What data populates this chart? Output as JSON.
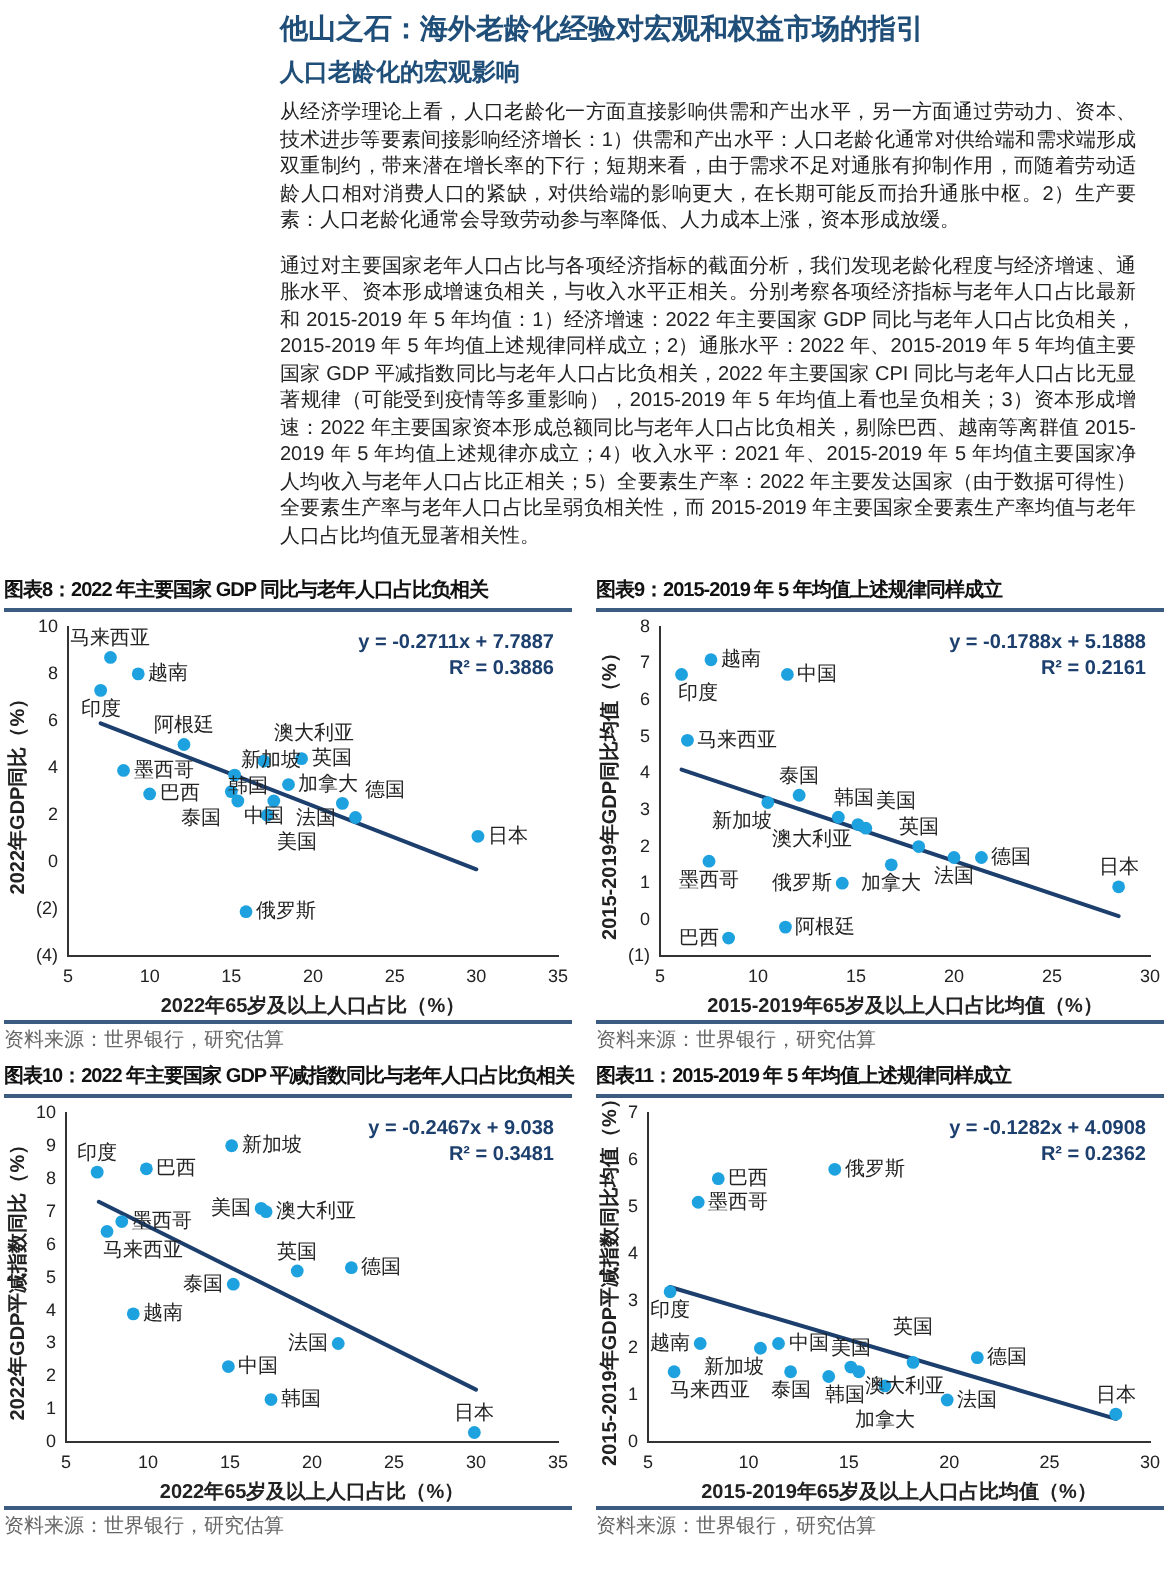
{
  "chart_data": [
    {
      "type": "other",
      "title": "他山之石：海外老龄化经验对宏观和权益市场的指引",
      "subtitle": "人口老龄化的宏观影响",
      "annotations": [
        "从经济学理论上看，人口老龄化一方面直接影响供需和产出水平，另一方面通过劳动力、资本、技术进步等要素间接影响经济增长：1）供需和产出水平：人口老龄化通常对供给端和需求端形成双重制约，带来潜在增长率的下行；短期来看，由于需求不足对通胀有抑制作用，而随着劳动适龄人口相对消费人口的紧缺，对供给端的影响更大，在长期可能反而抬升通胀中枢。2）生产要素：人口老龄化通常会导致劳动参与率降低、人力成本上涨，资本形成放缓。",
        "通过对主要国家老年人口占比与各项经济指标的截面分析，我们发现老龄化程度与经济增速、通胀水平、资本形成增速负相关，与收入水平正相关。分别考察各项经济指标与老年人口占比最新和 2015-2019 年 5 年均值：1）经济增速：2022 年主要国家 GDP 同比与老年人口占比负相关，2015-2019 年 5 年均值上述规律同样成立；2）通胀水平：2022 年、2015-2019 年 5 年均值主要国家 GDP 平减指数同比与老年人口占比负相关，2022 年主要国家 CPI 同比与老年人口占比无显著规律（可能受到疫情等多重影响），2015-2019 年 5 年均值上看也呈负相关；3）资本形成增速：2022 年主要国家资本形成总额同比与老年人口占比负相关，剔除巴西、越南等离群值 2015-2019 年 5 年均值上述规律亦成立；4）收入水平：2021 年、2015-2019 年 5 年均值主要国家净人均收入与老年人口占比正相关；5）全要素生产率：2022 年主要发达国家（由于数据可得性）全要素生产率与老年人口占比呈弱负相关性，而 2015-2019 年主要国家全要素生产率均值与老年人口占比均值无显著相关性。"
      ]
    },
    {
      "type": "scatter",
      "title": "图表8：2022 年主要国家 GDP 同比与老年人口占比负相关",
      "xlabel": "2022年65岁及以上人口占比（%）",
      "ylabel": "2022年GDP同比（%）",
      "xlim": [
        5,
        35
      ],
      "xticks": [
        5,
        10,
        15,
        20,
        25,
        30,
        35
      ],
      "ylim": [
        -4,
        10
      ],
      "yticks": [
        {
          "value": -4,
          "label": "(4)"
        },
        {
          "value": -2,
          "label": "(2)"
        },
        0,
        2,
        4,
        6,
        8,
        10
      ],
      "grid": false,
      "legend": false,
      "marker": "circle",
      "annotations": [
        "y = -0.2711x + 7.7887",
        "R² = 0.3886",
        "资料来源：世界银行，研究估算"
      ],
      "series": [
        {
          "name": "马来西亚",
          "type": "scatter",
          "color": "#1ea2df",
          "x": [
            7.6
          ],
          "values": [
            8.7
          ]
        },
        {
          "name": "越南",
          "type": "scatter",
          "color": "#1ea2df",
          "x": [
            9.3
          ],
          "values": [
            8.0
          ]
        },
        {
          "name": "印度",
          "type": "scatter",
          "color": "#1ea2df",
          "x": [
            7.0
          ],
          "values": [
            7.3
          ]
        },
        {
          "name": "阿根廷",
          "type": "scatter",
          "color": "#1ea2df",
          "x": [
            12.1
          ],
          "values": [
            5.0
          ]
        },
        {
          "name": "墨西哥",
          "type": "scatter",
          "color": "#1ea2df",
          "x": [
            8.4
          ],
          "values": [
            3.9
          ]
        },
        {
          "name": "巴西",
          "type": "scatter",
          "color": "#1ea2df",
          "x": [
            10.0
          ],
          "values": [
            2.9
          ]
        },
        {
          "name": "澳大利亚",
          "type": "scatter",
          "color": "#1ea2df",
          "x": [
            17.0
          ],
          "values": [
            4.3
          ]
        },
        {
          "name": "英国",
          "type": "scatter",
          "color": "#1ea2df",
          "x": [
            19.3
          ],
          "values": [
            4.4
          ]
        },
        {
          "name": "新加坡",
          "type": "scatter",
          "color": "#1ea2df",
          "x": [
            15.2
          ],
          "values": [
            3.7
          ]
        },
        {
          "name": "加拿大",
          "type": "scatter",
          "color": "#1ea2df",
          "x": [
            18.5
          ],
          "values": [
            3.3
          ]
        },
        {
          "name": "泰国",
          "type": "scatter",
          "color": "#1ea2df",
          "x": [
            15.0
          ],
          "values": [
            3.0
          ]
        },
        {
          "name": "中国",
          "type": "scatter",
          "color": "#1ea2df",
          "x": [
            15.4
          ],
          "values": [
            2.6
          ]
        },
        {
          "name": "韩国",
          "type": "scatter",
          "color": "#1ea2df",
          "x": [
            17.6
          ],
          "values": [
            2.6
          ]
        },
        {
          "name": "美国",
          "type": "scatter",
          "color": "#1ea2df",
          "x": [
            17.2
          ],
          "values": [
            2.0
          ]
        },
        {
          "name": "法国",
          "type": "scatter",
          "color": "#1ea2df",
          "x": [
            21.8
          ],
          "values": [
            2.5
          ]
        },
        {
          "name": "德国",
          "type": "scatter",
          "color": "#1ea2df",
          "x": [
            22.6
          ],
          "values": [
            1.9
          ]
        },
        {
          "name": "日本",
          "type": "scatter",
          "color": "#1ea2df",
          "x": [
            30.1
          ],
          "values": [
            1.1
          ]
        },
        {
          "name": "俄罗斯",
          "type": "scatter",
          "color": "#1ea2df",
          "x": [
            15.9
          ],
          "values": [
            -2.1
          ]
        },
        {
          "type": "line",
          "marker": "none",
          "color": "#1c3f6e",
          "x": [
            7.0,
            30.0
          ],
          "values": [
            5.9,
            -0.3
          ]
        }
      ]
    },
    {
      "type": "scatter",
      "title": "图表9：2015-2019 年 5 年均值上述规律同样成立",
      "xlabel": "2015-2019年65岁及以上人口占比均值（%）",
      "ylabel": "2015-2019年GDP同比均值（%）",
      "xlim": [
        5,
        30
      ],
      "xticks": [
        5,
        10,
        15,
        20,
        25,
        30
      ],
      "ylim": [
        -1,
        8
      ],
      "yticks": [
        {
          "value": -1,
          "label": "(1)"
        },
        0,
        1,
        2,
        3,
        4,
        5,
        6,
        7,
        8
      ],
      "grid": false,
      "legend": false,
      "marker": "circle",
      "annotations": [
        "y = -0.1788x + 5.1888",
        "R² = 0.2161",
        "资料来源：世界银行，研究估算"
      ],
      "series": [
        {
          "name": "越南",
          "type": "scatter",
          "color": "#1ea2df",
          "x": [
            7.6
          ],
          "values": [
            7.1
          ]
        },
        {
          "name": "印度",
          "type": "scatter",
          "color": "#1ea2df",
          "x": [
            6.1
          ],
          "values": [
            6.7
          ]
        },
        {
          "name": "中国",
          "type": "scatter",
          "color": "#1ea2df",
          "x": [
            11.5
          ],
          "values": [
            6.7
          ]
        },
        {
          "name": "马来西亚",
          "type": "scatter",
          "color": "#1ea2df",
          "x": [
            6.4
          ],
          "values": [
            4.9
          ]
        },
        {
          "name": "泰国",
          "type": "scatter",
          "color": "#1ea2df",
          "x": [
            12.1
          ],
          "values": [
            3.4
          ]
        },
        {
          "name": "新加坡",
          "type": "scatter",
          "color": "#1ea2df",
          "x": [
            10.5
          ],
          "values": [
            3.2
          ]
        },
        {
          "name": "韩国",
          "type": "scatter",
          "color": "#1ea2df",
          "x": [
            14.1
          ],
          "values": [
            2.8
          ]
        },
        {
          "name": "澳大利亚",
          "type": "scatter",
          "color": "#1ea2df",
          "x": [
            15.1
          ],
          "values": [
            2.6
          ]
        },
        {
          "name": "美国",
          "type": "scatter",
          "color": "#1ea2df",
          "x": [
            15.5
          ],
          "values": [
            2.5
          ]
        },
        {
          "name": "英国",
          "type": "scatter",
          "color": "#1ea2df",
          "x": [
            18.2
          ],
          "values": [
            2.0
          ]
        },
        {
          "name": "加拿大",
          "type": "scatter",
          "color": "#1ea2df",
          "x": [
            16.8
          ],
          "values": [
            1.5
          ]
        },
        {
          "name": "法国",
          "type": "scatter",
          "color": "#1ea2df",
          "x": [
            20.0
          ],
          "values": [
            1.7
          ]
        },
        {
          "name": "德国",
          "type": "scatter",
          "color": "#1ea2df",
          "x": [
            21.4
          ],
          "values": [
            1.7
          ]
        },
        {
          "name": "墨西哥",
          "type": "scatter",
          "color": "#1ea2df",
          "x": [
            7.5
          ],
          "values": [
            1.6
          ]
        },
        {
          "name": "俄罗斯",
          "type": "scatter",
          "color": "#1ea2df",
          "x": [
            14.3
          ],
          "values": [
            1.0
          ]
        },
        {
          "name": "日本",
          "type": "scatter",
          "color": "#1ea2df",
          "x": [
            28.4
          ],
          "values": [
            0.9
          ]
        },
        {
          "name": "阿根廷",
          "type": "scatter",
          "color": "#1ea2df",
          "x": [
            11.4
          ],
          "values": [
            -0.2
          ]
        },
        {
          "name": "巴西",
          "type": "scatter",
          "color": "#1ea2df",
          "x": [
            8.5
          ],
          "values": [
            -0.5
          ]
        },
        {
          "type": "line",
          "marker": "none",
          "color": "#1c3f6e",
          "x": [
            6.1,
            28.4
          ],
          "values": [
            4.1,
            0.1
          ]
        }
      ]
    },
    {
      "type": "scatter",
      "title": "图表10：2022 年主要国家 GDP 平减指数同比与老年人口占比负相关",
      "xlabel": "2022年65岁及以上人口占比（%）",
      "ylabel": "2022年GDP平减指数同比（%）",
      "xlim": [
        5,
        35
      ],
      "xticks": [
        5,
        10,
        15,
        20,
        25,
        30,
        35
      ],
      "ylim": [
        0,
        10
      ],
      "yticks": [
        0,
        1,
        2,
        3,
        4,
        5,
        6,
        7,
        8,
        9,
        10
      ],
      "grid": false,
      "legend": false,
      "marker": "circle",
      "annotations": [
        "y = -0.2467x + 9.038",
        "R² = 0.3481",
        "资料来源：世界银行，研究估算"
      ],
      "series": [
        {
          "name": "印度",
          "type": "scatter",
          "color": "#1ea2df",
          "x": [
            6.9
          ],
          "values": [
            8.2
          ]
        },
        {
          "name": "巴西",
          "type": "scatter",
          "color": "#1ea2df",
          "x": [
            9.9
          ],
          "values": [
            8.3
          ]
        },
        {
          "name": "新加坡",
          "type": "scatter",
          "color": "#1ea2df",
          "x": [
            15.1
          ],
          "values": [
            9.0
          ]
        },
        {
          "name": "墨西哥",
          "type": "scatter",
          "color": "#1ea2df",
          "x": [
            8.4
          ],
          "values": [
            6.7
          ]
        },
        {
          "name": "马来西亚",
          "type": "scatter",
          "color": "#1ea2df",
          "x": [
            7.5
          ],
          "values": [
            6.4
          ]
        },
        {
          "name": "美国",
          "type": "scatter",
          "color": "#1ea2df",
          "x": [
            16.9
          ],
          "values": [
            7.1
          ]
        },
        {
          "name": "澳大利亚",
          "type": "scatter",
          "color": "#1ea2df",
          "x": [
            17.2
          ],
          "values": [
            7.0
          ]
        },
        {
          "name": "英国",
          "type": "scatter",
          "color": "#1ea2df",
          "x": [
            19.1
          ],
          "values": [
            5.2
          ]
        },
        {
          "name": "德国",
          "type": "scatter",
          "color": "#1ea2df",
          "x": [
            22.4
          ],
          "values": [
            5.3
          ]
        },
        {
          "name": "泰国",
          "type": "scatter",
          "color": "#1ea2df",
          "x": [
            15.2
          ],
          "values": [
            4.8
          ]
        },
        {
          "name": "越南",
          "type": "scatter",
          "color": "#1ea2df",
          "x": [
            9.1
          ],
          "values": [
            3.9
          ]
        },
        {
          "name": "法国",
          "type": "scatter",
          "color": "#1ea2df",
          "x": [
            21.6
          ],
          "values": [
            3.0
          ]
        },
        {
          "name": "中国",
          "type": "scatter",
          "color": "#1ea2df",
          "x": [
            14.9
          ],
          "values": [
            2.3
          ]
        },
        {
          "name": "韩国",
          "type": "scatter",
          "color": "#1ea2df",
          "x": [
            17.5
          ],
          "values": [
            1.3
          ]
        },
        {
          "name": "日本",
          "type": "scatter",
          "color": "#1ea2df",
          "x": [
            29.9
          ],
          "values": [
            0.3
          ]
        },
        {
          "type": "line",
          "marker": "none",
          "color": "#1c3f6e",
          "x": [
            7.0,
            30.0
          ],
          "values": [
            7.3,
            1.6
          ]
        }
      ]
    },
    {
      "type": "scatter",
      "title": "图表11：2015-2019 年 5 年均值上述规律同样成立",
      "xlabel": "2015-2019年65岁及以上人口占比均值（%）",
      "ylabel": "2015-2019年GDP平减指数同比均值（%）",
      "xlim": [
        5,
        30
      ],
      "xticks": [
        5,
        10,
        15,
        20,
        25,
        30
      ],
      "ylim": [
        0,
        7
      ],
      "yticks": [
        0,
        1,
        2,
        3,
        4,
        5,
        6,
        7
      ],
      "grid": false,
      "legend": false,
      "marker": "circle",
      "annotations": [
        "y = -0.1282x + 4.0908",
        "R² = 0.2362",
        "资料来源：世界银行，研究估算"
      ],
      "series": [
        {
          "name": "巴西",
          "type": "scatter",
          "color": "#1ea2df",
          "x": [
            8.5
          ],
          "values": [
            5.6
          ]
        },
        {
          "name": "俄罗斯",
          "type": "scatter",
          "color": "#1ea2df",
          "x": [
            14.3
          ],
          "values": [
            5.8
          ]
        },
        {
          "name": "墨西哥",
          "type": "scatter",
          "color": "#1ea2df",
          "x": [
            7.5
          ],
          "values": [
            5.1
          ]
        },
        {
          "name": "印度",
          "type": "scatter",
          "color": "#1ea2df",
          "x": [
            6.1
          ],
          "values": [
            3.2
          ]
        },
        {
          "name": "越南",
          "type": "scatter",
          "color": "#1ea2df",
          "x": [
            7.6
          ],
          "values": [
            2.1
          ]
        },
        {
          "name": "新加坡",
          "type": "scatter",
          "color": "#1ea2df",
          "x": [
            10.6
          ],
          "values": [
            2.0
          ]
        },
        {
          "name": "中国",
          "type": "scatter",
          "color": "#1ea2df",
          "x": [
            11.5
          ],
          "values": [
            2.1
          ]
        },
        {
          "name": "马来西亚",
          "type": "scatter",
          "color": "#1ea2df",
          "x": [
            6.3
          ],
          "values": [
            1.5
          ]
        },
        {
          "name": "泰国",
          "type": "scatter",
          "color": "#1ea2df",
          "x": [
            12.1
          ],
          "values": [
            1.5
          ]
        },
        {
          "name": "韩国",
          "type": "scatter",
          "color": "#1ea2df",
          "x": [
            14.0
          ],
          "values": [
            1.4
          ]
        },
        {
          "name": "美国",
          "type": "scatter",
          "color": "#1ea2df",
          "x": [
            15.1
          ],
          "values": [
            1.6
          ]
        },
        {
          "name": "澳大利亚",
          "type": "scatter",
          "color": "#1ea2df",
          "x": [
            15.5
          ],
          "values": [
            1.5
          ]
        },
        {
          "name": "加拿大",
          "type": "scatter",
          "color": "#1ea2df",
          "x": [
            16.8
          ],
          "values": [
            1.2
          ]
        },
        {
          "name": "英国",
          "type": "scatter",
          "color": "#1ea2df",
          "x": [
            18.2
          ],
          "values": [
            1.7
          ]
        },
        {
          "name": "法国",
          "type": "scatter",
          "color": "#1ea2df",
          "x": [
            19.9
          ],
          "values": [
            0.9
          ]
        },
        {
          "name": "德国",
          "type": "scatter",
          "color": "#1ea2df",
          "x": [
            21.4
          ],
          "values": [
            1.8
          ]
        },
        {
          "name": "日本",
          "type": "scatter",
          "color": "#1ea2df",
          "x": [
            28.3
          ],
          "values": [
            0.6
          ]
        },
        {
          "type": "line",
          "marker": "none",
          "color": "#1c3f6e",
          "x": [
            6.1,
            28.3
          ],
          "values": [
            3.3,
            0.5
          ]
        }
      ]
    }
  ]
}
